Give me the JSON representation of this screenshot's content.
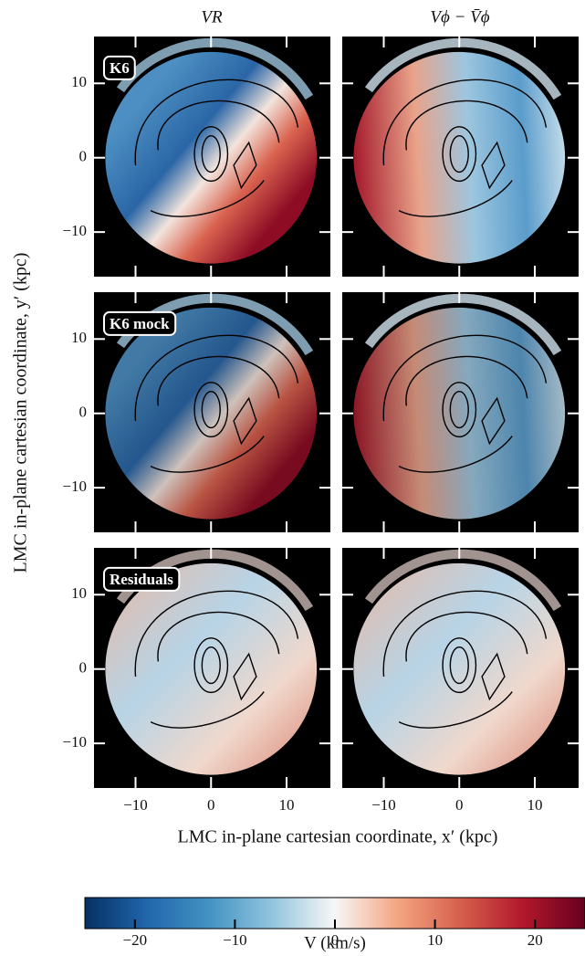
{
  "chart_data": {
    "type": "heatmap",
    "column_titles": [
      "VR",
      "Vϕ − V̄ϕ"
    ],
    "xlabel": "LMC in-plane cartesian coordinate, x′ (kpc)",
    "ylabel": "LMC in-plane cartesian coordinate, y′ (kpc)",
    "xlim": [
      -15.5,
      15.8
    ],
    "xticks": [
      {
        "value": -10,
        "label": "−10"
      },
      0,
      10
    ],
    "ylim": [
      -16,
      16.3
    ],
    "yticks": [
      {
        "value": -10,
        "label": "−10"
      },
      0,
      10
    ],
    "row_labels": [
      "K6",
      "K6 mock",
      "Residuals"
    ],
    "colorbar": {
      "label": "V (km/s)",
      "lim": [
        -25,
        25
      ],
      "ticks": [
        {
          "value": -20,
          "label": "−20"
        },
        {
          "value": -10,
          "label": "−10"
        },
        0,
        10,
        20
      ],
      "colors": [
        "#053061",
        "#2166ac",
        "#4393c3",
        "#92c5de",
        "#f7f7f7",
        "#f4a582",
        "#d6604d",
        "#b2182b",
        "#67001f"
      ]
    }
  }
}
